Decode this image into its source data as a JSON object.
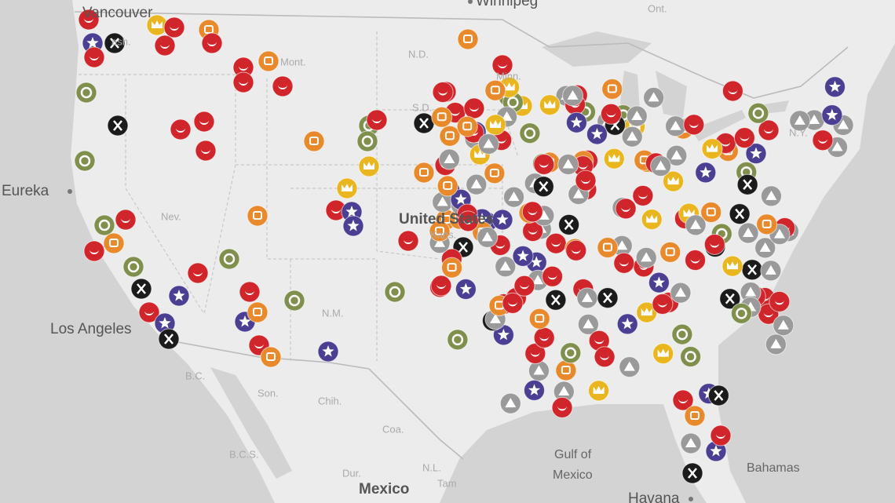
{
  "map": {
    "cities": [
      "Vancouver",
      "Winnipeg",
      "Eureka",
      "Los Angeles",
      "Havana"
    ],
    "regions": [
      "Ont.",
      "ash.",
      "Mont.",
      "N.D.",
      "Minn.",
      "S.D.",
      "Nev.",
      "Kans.",
      "N.M.",
      "N.Y.",
      "B.C.",
      "Son.",
      "Chih.",
      "Coa.",
      "B.C.S.",
      "Dur.",
      "N.L.",
      "Tam"
    ],
    "countries": [
      "United States",
      "Mexico"
    ],
    "water": [
      "Gulf of",
      "Mexico"
    ],
    "islands": [
      "Bahamas"
    ]
  }
}
